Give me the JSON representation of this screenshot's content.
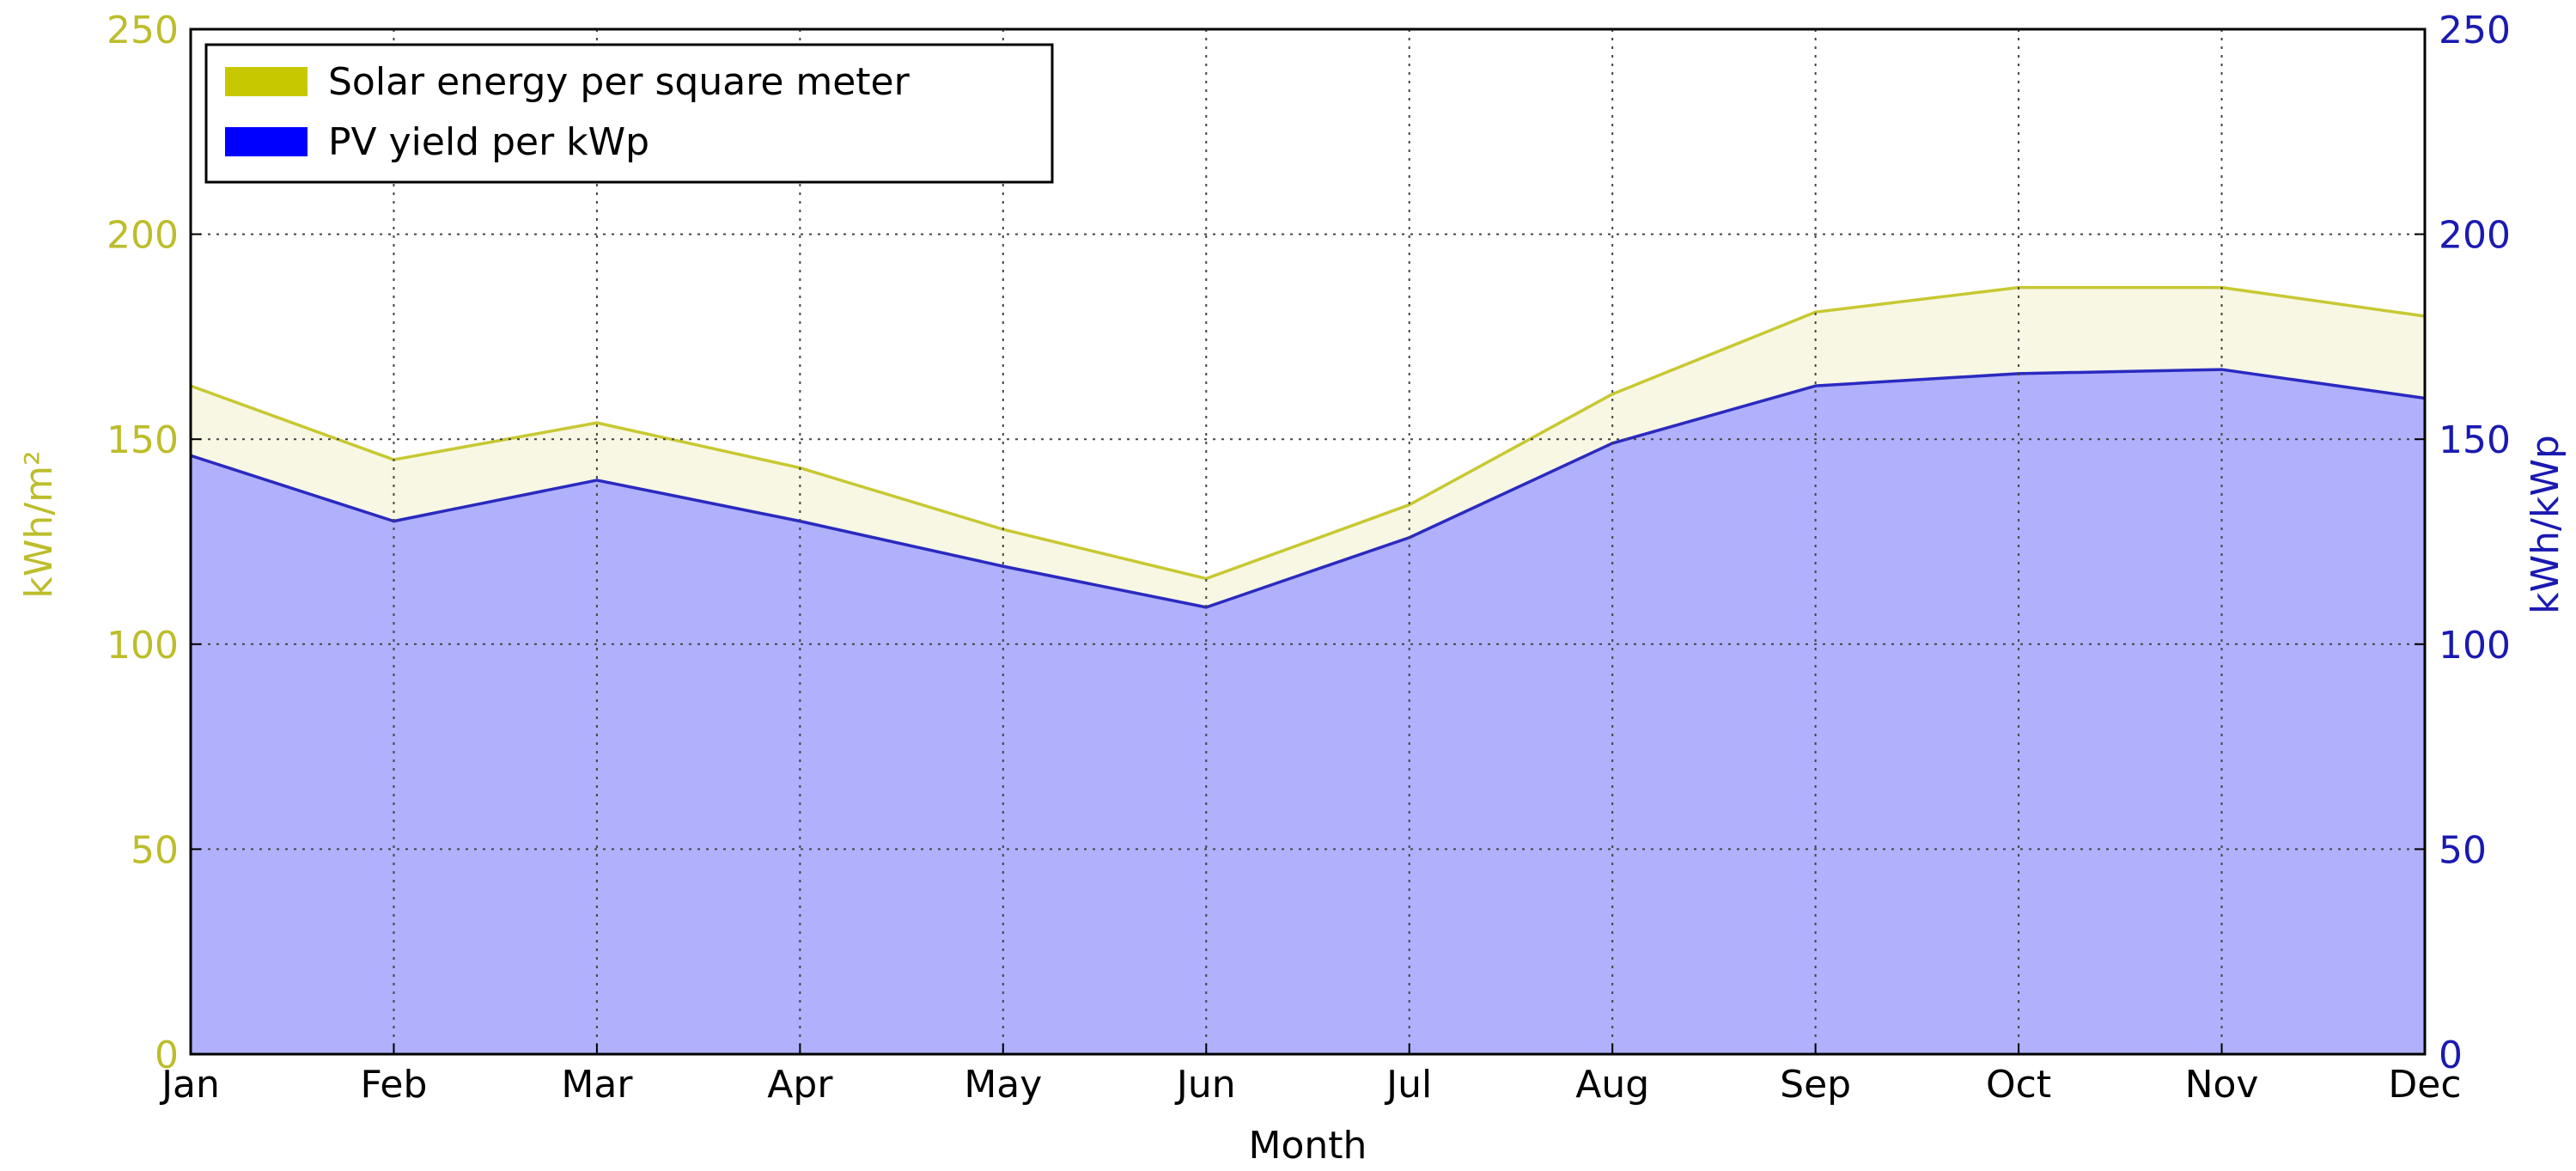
{
  "chart_data": {
    "type": "area",
    "categories": [
      "Jan",
      "Feb",
      "Mar",
      "Apr",
      "May",
      "Jun",
      "Jul",
      "Aug",
      "Sep",
      "Oct",
      "Nov",
      "Dec"
    ],
    "xlabel": "Month",
    "ylabel_left": "kWh/m²",
    "ylabel_right": "kWh/kWp",
    "ylim": [
      0,
      250
    ],
    "yticks": [
      0,
      50,
      100,
      150,
      200,
      250
    ],
    "grid": true,
    "legend_position": "top-left",
    "series": [
      {
        "name": "Solar energy per square meter",
        "axis": "left",
        "color": "#c8c800",
        "line_color": "#c8c832",
        "fill_color": "#f7f7e4",
        "values": [
          163,
          145,
          154,
          143,
          128,
          116,
          134,
          161,
          181,
          187,
          187,
          180
        ]
      },
      {
        "name": "PV yield per kWp",
        "axis": "right",
        "color": "#0000ff",
        "line_color": "#2a2ac0",
        "fill_color": "#b0b0fc",
        "values": [
          146,
          130,
          140,
          130,
          119,
          109,
          126,
          149,
          163,
          166,
          167,
          160
        ]
      }
    ]
  }
}
